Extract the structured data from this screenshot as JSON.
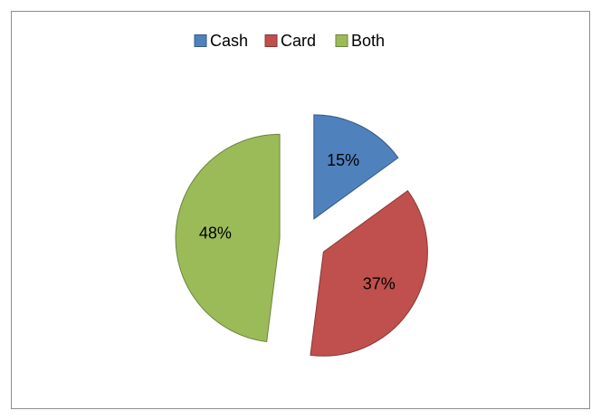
{
  "chart_data": {
    "type": "pie",
    "categories": [
      "Cash",
      "Card",
      "Both"
    ],
    "values": [
      15,
      37,
      48
    ],
    "value_labels": [
      "15%",
      "37%",
      "48%"
    ],
    "colors": [
      "#4f81bd",
      "#c0504d",
      "#9bbb59"
    ],
    "legend": "top"
  }
}
